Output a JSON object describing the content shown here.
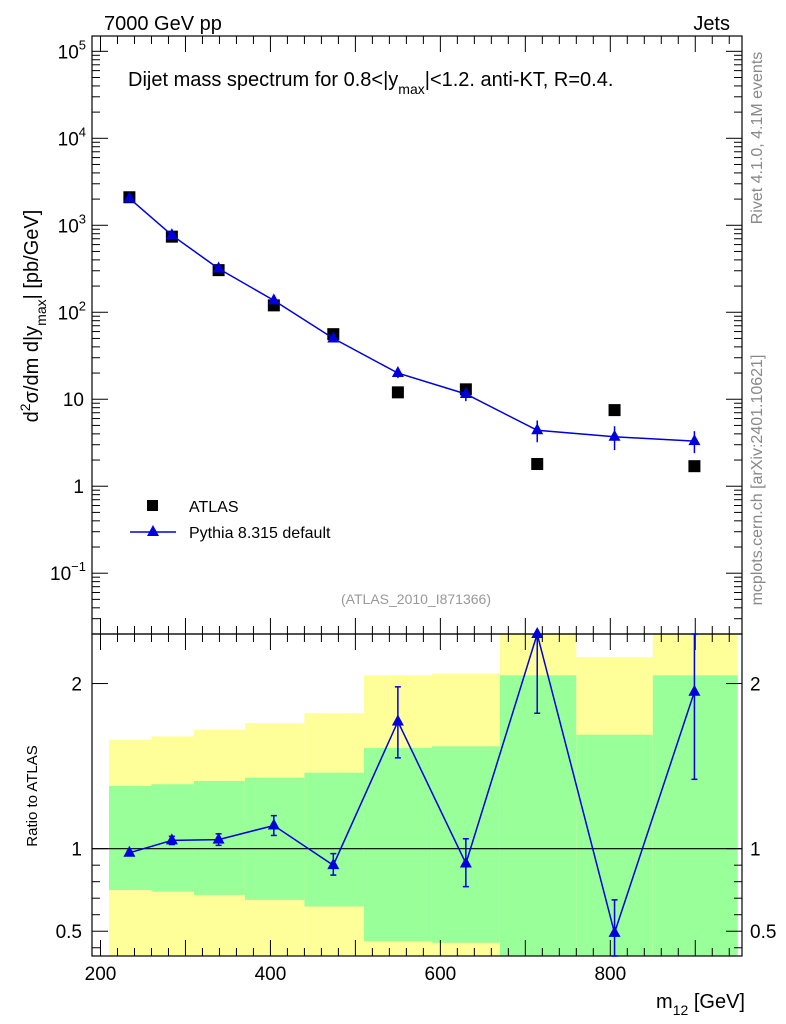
{
  "header": {
    "left": "7000 GeV pp",
    "right": "Jets"
  },
  "side_text": {
    "rivet": "Rivet 4.1.0,  4.1M events",
    "mcplots": "mcplots.cern.ch [arXiv:2401.10621]"
  },
  "chart_data": [
    {
      "type": "scatter",
      "panel": "main",
      "title_parts": {
        "pre": "Dijet mass spectrum for 0.8<|y",
        "sub": "max",
        "post": "|<1.2.  anti-KT, R=0.4."
      },
      "ylabel_parts": {
        "d": "d",
        "sup2": "2",
        "mid": "σ/dm d|y",
        "sub": "max",
        "end": "| [pb/GeV]"
      },
      "yscale": "log",
      "xlim": [
        190,
        955
      ],
      "ylim": [
        0.02,
        150000
      ],
      "y_ticks": [
        {
          "value": 100000,
          "base": "10",
          "exp": "5"
        },
        {
          "value": 10000,
          "base": "10",
          "exp": "4"
        },
        {
          "value": 1000,
          "base": "10",
          "exp": "3"
        },
        {
          "value": 100,
          "base": "10",
          "exp": "2"
        },
        {
          "value": 10,
          "base": "10",
          "exp": ""
        },
        {
          "value": 1,
          "base": "1",
          "exp": ""
        },
        {
          "value": 0.1,
          "base": "10",
          "exp": "−1"
        }
      ],
      "analysis_label": "(ATLAS_2010_I871366)",
      "legend_position": "bottom-left",
      "series": [
        {
          "name": "ATLAS",
          "marker": "square",
          "color": "#000000",
          "points": [
            {
              "x": 234,
              "y": 2100
            },
            {
              "x": 284,
              "y": 740
            },
            {
              "x": 339,
              "y": 305
            },
            {
              "x": 404,
              "y": 120
            },
            {
              "x": 474,
              "y": 56
            },
            {
              "x": 550,
              "y": 12
            },
            {
              "x": 630,
              "y": 13
            },
            {
              "x": 714,
              "y": 1.8
            },
            {
              "x": 805,
              "y": 7.5
            },
            {
              "x": 899,
              "y": 1.7
            }
          ]
        },
        {
          "name": "Pythia 8.315 default",
          "marker": "triangle",
          "color": "#0000dd",
          "points": [
            {
              "x": 234,
              "y": 2040,
              "lo": 1990,
              "hi": 2090
            },
            {
              "x": 284,
              "y": 770,
              "lo": 745,
              "hi": 795
            },
            {
              "x": 339,
              "y": 318,
              "lo": 305,
              "hi": 331
            },
            {
              "x": 404,
              "y": 137,
              "lo": 128,
              "hi": 146
            },
            {
              "x": 474,
              "y": 50,
              "lo": 45,
              "hi": 55
            },
            {
              "x": 550,
              "y": 20,
              "lo": 17.5,
              "hi": 22.5
            },
            {
              "x": 630,
              "y": 11.5,
              "lo": 9.5,
              "hi": 13.5
            },
            {
              "x": 714,
              "y": 4.4,
              "lo": 3.2,
              "hi": 5.7
            },
            {
              "x": 805,
              "y": 3.7,
              "lo": 2.6,
              "hi": 4.9
            },
            {
              "x": 899,
              "y": 3.3,
              "lo": 2.4,
              "hi": 4.3
            }
          ]
        }
      ]
    },
    {
      "type": "line",
      "panel": "ratio",
      "ylabel": "Ratio to ATLAS",
      "xlabel_parts": {
        "base": "m",
        "sub": "12",
        "unit": " [GeV]"
      },
      "xlim": [
        190,
        955
      ],
      "ylim": [
        0.35,
        2.3
      ],
      "reference_line": 1,
      "x_ticks": [
        {
          "value": 200,
          "label": "200"
        },
        {
          "value": 400,
          "label": "400"
        },
        {
          "value": 600,
          "label": "600"
        },
        {
          "value": 800,
          "label": "800"
        }
      ],
      "y_ticks": [
        {
          "value": 2,
          "label": "2"
        },
        {
          "value": 1,
          "label": "1"
        },
        {
          "value": 0.5,
          "label": "0.5"
        }
      ],
      "bands": [
        {
          "x0": 210,
          "x1": 260,
          "inner_lo": 0.75,
          "inner_hi": 1.38,
          "outer_lo": 0.35,
          "outer_hi": 1.66
        },
        {
          "x0": 260,
          "x1": 310,
          "inner_lo": 0.74,
          "inner_hi": 1.39,
          "outer_lo": 0.35,
          "outer_hi": 1.68
        },
        {
          "x0": 310,
          "x1": 370,
          "inner_lo": 0.72,
          "inner_hi": 1.41,
          "outer_lo": 0.35,
          "outer_hi": 1.72
        },
        {
          "x0": 370,
          "x1": 440,
          "inner_lo": 0.69,
          "inner_hi": 1.43,
          "outer_lo": 0.35,
          "outer_hi": 1.76
        },
        {
          "x0": 440,
          "x1": 510,
          "inner_lo": 0.65,
          "inner_hi": 1.46,
          "outer_lo": 0.35,
          "outer_hi": 1.82
        },
        {
          "x0": 510,
          "x1": 590,
          "inner_lo": 0.44,
          "inner_hi": 1.61,
          "outer_lo": 0.35,
          "outer_hi": 2.05
        },
        {
          "x0": 590,
          "x1": 670,
          "inner_lo": 0.43,
          "inner_hi": 1.62,
          "outer_lo": 0.35,
          "outer_hi": 2.06
        },
        {
          "x0": 670,
          "x1": 760,
          "inner_lo": 0.35,
          "inner_hi": 2.05,
          "outer_lo": 0.35,
          "outer_hi": 2.3
        },
        {
          "x0": 760,
          "x1": 850,
          "inner_lo": 0.35,
          "inner_hi": 1.69,
          "outer_lo": 0.35,
          "outer_hi": 2.16
        },
        {
          "x0": 850,
          "x1": 950,
          "inner_lo": 0.35,
          "inner_hi": 2.05,
          "outer_lo": 0.35,
          "outer_hi": 2.3
        }
      ],
      "series": [
        {
          "name": "Pythia 8.315 default / ATLAS",
          "marker": "triangle",
          "color": "#0000dd",
          "points": [
            {
              "x": 234,
              "y": 0.975,
              "lo": 0.965,
              "hi": 0.985
            },
            {
              "x": 284,
              "y": 1.05,
              "lo": 1.025,
              "hi": 1.075
            },
            {
              "x": 339,
              "y": 1.055,
              "lo": 1.02,
              "hi": 1.09
            },
            {
              "x": 404,
              "y": 1.14,
              "lo": 1.08,
              "hi": 1.2
            },
            {
              "x": 474,
              "y": 0.9,
              "lo": 0.84,
              "hi": 0.97
            },
            {
              "x": 550,
              "y": 1.77,
              "lo": 1.55,
              "hi": 1.98
            },
            {
              "x": 630,
              "y": 0.91,
              "lo": 0.77,
              "hi": 1.06
            },
            {
              "x": 714,
              "y": 2.3,
              "lo": 1.82,
              "hi": 2.3
            },
            {
              "x": 805,
              "y": 0.49,
              "lo": 0.35,
              "hi": 0.69
            },
            {
              "x": 899,
              "y": 1.95,
              "lo": 1.42,
              "hi": 2.3
            }
          ]
        }
      ]
    }
  ],
  "colors": {
    "inner_band": "#99ff99",
    "outer_band": "#ffff99",
    "data": "#000000",
    "mc": "#0000dd",
    "side_text": "#888888",
    "analysis_label": "#999999"
  }
}
